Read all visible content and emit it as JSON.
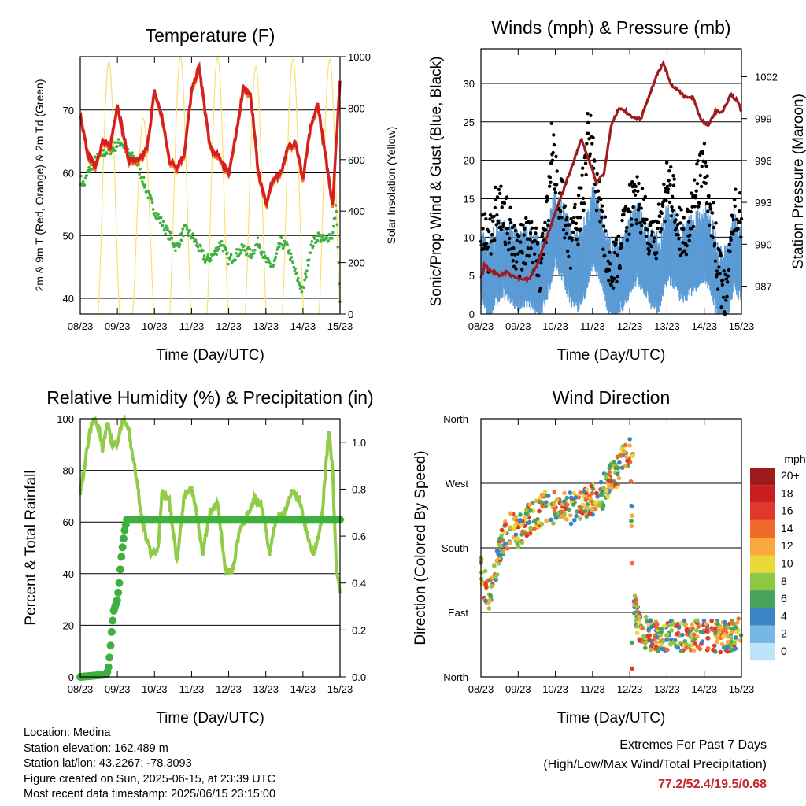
{
  "colors": {
    "temp": "#d62020",
    "temp9": "#f07d20",
    "dew": "#3fb03f",
    "solar": "#f7e070",
    "wind": "#5b9bd5",
    "gust": "#000000",
    "pressure": "#a01c1c",
    "rh": "#90cc48",
    "precip": "#3fb03f"
  },
  "x_ticks": [
    "08/23",
    "09/23",
    "10/23",
    "11/23",
    "12/23",
    "13/23",
    "14/23",
    "15/23"
  ],
  "x_label": "Time (Day/UTC)",
  "chart_data": [
    {
      "id": "temperature",
      "type": "line",
      "title": "Temperature (F)",
      "ylabel": "2m & 9m T (Red, Orange) & 2m Td (Green)",
      "y2label": "Solar Insolation (Yellow)",
      "ylim": [
        37.5,
        78.5
      ],
      "yticks": [
        40,
        50,
        60,
        70
      ],
      "y2lim": [
        0,
        1000
      ],
      "y2ticks": [
        0,
        200,
        400,
        600,
        800,
        1000
      ],
      "series": [
        {
          "role": "temp",
          "x": [
            0,
            0.2,
            0.4,
            0.6,
            0.8,
            1.0,
            1.1,
            1.3,
            1.6,
            1.8,
            2.0,
            2.2,
            2.4,
            2.6,
            2.8,
            3.0,
            3.2,
            3.5,
            3.8,
            4.0,
            4.2,
            4.4,
            4.6,
            4.8,
            5.0,
            5.2,
            5.4,
            5.6,
            5.8,
            6.0,
            6.2,
            6.4,
            6.6,
            6.8,
            7.0
          ],
          "y": [
            69,
            63,
            61,
            65,
            64,
            71,
            68,
            62,
            62,
            64,
            73,
            69,
            62,
            61,
            63,
            73,
            77,
            64,
            62,
            60,
            66,
            74,
            72,
            60,
            55,
            59,
            60,
            64,
            65,
            59,
            67,
            71,
            63,
            55,
            75
          ]
        },
        {
          "role": "dew",
          "x": [
            0,
            0.1,
            0.2,
            0.4,
            0.6,
            0.9,
            1.1,
            1.3,
            1.5,
            1.8,
            2.0,
            2.2,
            2.4,
            2.6,
            2.8,
            3.0,
            3.2,
            3.4,
            3.6,
            3.8,
            4.0,
            4.2,
            4.4,
            4.6,
            4.8,
            5.0,
            5.2,
            5.4,
            5.6,
            5.8,
            6.0,
            6.2,
            6.4,
            6.6,
            6.7,
            6.8,
            6.9,
            7.0
          ],
          "y": [
            59,
            58,
            60,
            62,
            63,
            64,
            65,
            63,
            62,
            57,
            54,
            52,
            50,
            48,
            51,
            50,
            48,
            46,
            47,
            49,
            46,
            47,
            48,
            47,
            49,
            46,
            45,
            49,
            48,
            44,
            41,
            48,
            50,
            49,
            50,
            50,
            55,
            39
          ]
        },
        {
          "role": "solar",
          "peaks": [
            0.77,
            1.7,
            2.7,
            3.7,
            4.73,
            5.73,
            6.72
          ],
          "heights": [
            980,
            760,
            1000,
            1000,
            960,
            990,
            990
          ]
        }
      ]
    },
    {
      "id": "winds",
      "type": "line",
      "title": "Winds (mph) & Pressure (mb)",
      "ylabel": "Sonic/Prop Wind & Gust (Blue, Black)",
      "y2label": "Station Pressure (Maroon)",
      "ylim": [
        0,
        34.5
      ],
      "yticks": [
        0,
        5,
        10,
        15,
        20,
        25,
        30
      ],
      "y2lim": [
        985,
        1004
      ],
      "y2ticks": [
        987,
        990,
        993,
        996,
        999,
        1002
      ],
      "series": [
        {
          "role": "wind",
          "x": [
            0,
            0.2,
            0.4,
            0.6,
            0.8,
            1.0,
            1.2,
            1.4,
            1.6,
            1.8,
            2.0,
            2.2,
            2.4,
            2.6,
            2.8,
            3.0,
            3.2,
            3.4,
            3.6,
            3.8,
            4.0,
            4.2,
            4.4,
            4.6,
            4.8,
            5.0,
            5.2,
            5.4,
            5.6,
            5.8,
            6.0,
            6.2,
            6.4,
            6.6,
            6.8,
            7.0
          ],
          "y": [
            6,
            4,
            6,
            7,
            6,
            5,
            6,
            5,
            4,
            7,
            11,
            9,
            6,
            5,
            7,
            11,
            9,
            5,
            4,
            5,
            7,
            9,
            7,
            5,
            5,
            9,
            8,
            6,
            7,
            8,
            9,
            7,
            3,
            3,
            8,
            6
          ]
        },
        {
          "role": "gust",
          "x": [
            0,
            0.2,
            0.4,
            0.6,
            0.8,
            1.0,
            1.2,
            1.4,
            1.6,
            1.8,
            1.9,
            2.0,
            2.2,
            2.4,
            2.6,
            2.8,
            2.9,
            3.0,
            3.2,
            3.4,
            3.6,
            3.8,
            4.0,
            4.2,
            4.4,
            4.6,
            4.8,
            5.0,
            5.2,
            5.4,
            5.6,
            5.8,
            6.0,
            6.2,
            6.4,
            6.6,
            6.8,
            7.0
          ],
          "y": [
            12,
            8,
            14,
            13,
            11,
            8,
            10,
            9,
            6,
            14,
            22,
            18,
            14,
            9,
            12,
            18,
            25,
            20,
            14,
            7,
            6,
            10,
            14,
            15,
            12,
            9,
            11,
            17,
            15,
            10,
            12,
            16,
            19,
            13,
            5,
            2,
            14,
            12
          ]
        },
        {
          "role": "pressure",
          "x": [
            0,
            0.1,
            0.3,
            0.5,
            0.7,
            0.9,
            1.1,
            1.3,
            1.5,
            1.7,
            1.9,
            2.1,
            2.3,
            2.5,
            2.7,
            2.9,
            3.1,
            3.3,
            3.5,
            3.7,
            3.9,
            4.1,
            4.3,
            4.5,
            4.7,
            4.9,
            5.1,
            5.3,
            5.5,
            5.7,
            5.9,
            6.1,
            6.3,
            6.5,
            6.7,
            6.9,
            7.0
          ],
          "y": [
            987.5,
            988.5,
            988,
            987.8,
            988,
            987.6,
            987.5,
            987.5,
            988.5,
            990,
            991.5,
            993,
            994.5,
            996,
            997.5,
            996,
            994.5,
            995,
            998.5,
            999.7,
            999.5,
            999,
            999,
            1000.5,
            1002,
            1003,
            1001.5,
            1001,
            1000.5,
            1000.5,
            999,
            998.5,
            999.5,
            999.5,
            1000.7,
            1000.3,
            999.5
          ]
        }
      ]
    },
    {
      "id": "humidity",
      "type": "line",
      "title": "Relative Humidity (%) & Precipitation (in)",
      "ylabel": "Percent & Total Rainfall",
      "ylim": [
        0,
        100
      ],
      "yticks": [
        0,
        20,
        40,
        60,
        80,
        100
      ],
      "y2lim": [
        0,
        1.1
      ],
      "y2ticks": [
        0.0,
        0.2,
        0.4,
        0.6,
        0.8,
        1.0
      ],
      "series": [
        {
          "role": "rh",
          "x": [
            0,
            0.1,
            0.25,
            0.35,
            0.5,
            0.6,
            0.75,
            0.85,
            1.0,
            1.15,
            1.3,
            1.5,
            1.7,
            1.9,
            2.1,
            2.2,
            2.4,
            2.6,
            2.8,
            3.0,
            3.1,
            3.3,
            3.5,
            3.7,
            3.9,
            4.1,
            4.3,
            4.5,
            4.7,
            4.9,
            5.1,
            5.3,
            5.5,
            5.7,
            5.9,
            6.1,
            6.3,
            6.5,
            6.7,
            6.8,
            6.9,
            7.0
          ],
          "y": [
            72,
            80,
            95,
            100,
            97,
            88,
            99,
            90,
            90,
            100,
            96,
            78,
            58,
            48,
            50,
            71,
            68,
            45,
            70,
            73,
            67,
            48,
            64,
            68,
            42,
            41,
            58,
            62,
            69,
            66,
            48,
            62,
            63,
            72,
            69,
            56,
            47,
            60,
            96,
            80,
            42,
            33
          ]
        },
        {
          "role": "precip",
          "x": [
            0,
            0.7,
            0.75,
            0.8,
            0.85,
            0.9,
            1.0,
            1.05,
            1.1,
            1.15,
            1.2,
            1.25,
            7.0
          ],
          "y": [
            0,
            0.01,
            0.03,
            0.1,
            0.2,
            0.28,
            0.33,
            0.4,
            0.5,
            0.57,
            0.63,
            0.67,
            0.67
          ]
        }
      ]
    },
    {
      "id": "direction",
      "type": "scatter",
      "title": "Wind Direction",
      "ylabel": "Direction (Colored By Speed)",
      "yticks": [
        "North",
        "East",
        "South",
        "West",
        "North"
      ],
      "ylim": [
        0,
        360
      ],
      "legend": {
        "unit": "mph",
        "labels": [
          "20+",
          "18",
          "16",
          "14",
          "12",
          "10",
          "8",
          "6",
          "4",
          "2",
          "0"
        ],
        "colors": [
          "#9e1b1b",
          "#c81e1e",
          "#e0382a",
          "#f06a2a",
          "#f8a83e",
          "#e8d83a",
          "#8cc844",
          "#48a45a",
          "#3a84c4",
          "#78b6e6",
          "#bde4f8"
        ]
      },
      "trend": [
        [
          0,
          150
        ],
        [
          0.2,
          110
        ],
        [
          0.4,
          150
        ],
        [
          0.6,
          190
        ],
        [
          0.8,
          210
        ],
        [
          1.0,
          200
        ],
        [
          1.2,
          215
        ],
        [
          1.4,
          225
        ],
        [
          1.6,
          230
        ],
        [
          1.8,
          240
        ],
        [
          2.0,
          235
        ],
        [
          2.2,
          238
        ],
        [
          2.4,
          235
        ],
        [
          2.6,
          238
        ],
        [
          2.8,
          240
        ],
        [
          3.0,
          245
        ],
        [
          3.2,
          250
        ],
        [
          3.4,
          270
        ],
        [
          3.6,
          280
        ],
        [
          3.8,
          300
        ],
        [
          4.0,
          320
        ],
        [
          4.1,
          100
        ],
        [
          4.3,
          65
        ],
        [
          4.5,
          60
        ],
        [
          4.8,
          55
        ],
        [
          5.0,
          60
        ],
        [
          5.3,
          55
        ],
        [
          5.6,
          60
        ],
        [
          5.9,
          55
        ],
        [
          6.2,
          58
        ],
        [
          6.5,
          55
        ],
        [
          6.8,
          60
        ],
        [
          7.0,
          58
        ]
      ]
    }
  ],
  "info": {
    "location": "Location: Medina",
    "elevation": "Station elevation: 162.489 m",
    "latlon": "Station lat/lon: 43.2267; -78.3093",
    "created": "Figure created on Sun, 2025-06-15, at 23:39 UTC",
    "recent": "Most recent data timestamp: 2025/06/15 23:15:00"
  },
  "extremes": {
    "line1": "Extremes For Past 7 Days",
    "line2": "(High/Low/Max Wind/Total Precipitation)",
    "value": "77.2/52.4/19.5/0.68"
  }
}
